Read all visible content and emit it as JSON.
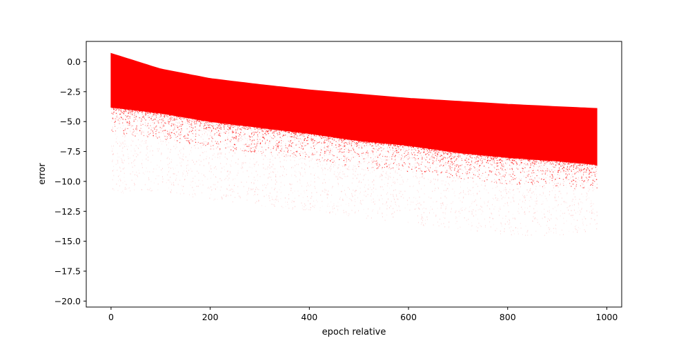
{
  "chart_data": {
    "type": "scatter",
    "title": "",
    "xlabel": "epoch relative",
    "ylabel": "error",
    "xlim": [
      -50,
      1030
    ],
    "ylim": [
      -20.5,
      1.7
    ],
    "xticks": [
      0,
      200,
      400,
      600,
      800,
      1000
    ],
    "yticks": [
      0.0,
      -2.5,
      -5.0,
      -7.5,
      -10.0,
      -12.5,
      -15.0,
      -17.5,
      -20.0
    ],
    "xtick_labels": [
      "0",
      "200",
      "400",
      "600",
      "800",
      "1000"
    ],
    "ytick_labels": [
      "0.0",
      "−2.5",
      "−5.0",
      "−7.5",
      "−10.0",
      "−12.5",
      "−15.0",
      "−17.5",
      "−20.0"
    ],
    "grid": false,
    "legend": "none",
    "color": "#ff0000",
    "point_cloud": {
      "x_range": [
        0,
        980
      ],
      "upper_envelope": {
        "x": [
          0,
          100,
          200,
          300,
          400,
          500,
          600,
          700,
          800,
          900,
          980
        ],
        "y": [
          0.7,
          -0.6,
          -1.4,
          -1.9,
          -2.35,
          -2.7,
          -3.05,
          -3.3,
          -3.55,
          -3.75,
          -3.9
        ]
      },
      "dense_lower_envelope": {
        "x": [
          0,
          100,
          200,
          300,
          400,
          500,
          600,
          700,
          800,
          900,
          980
        ],
        "y": [
          -3.8,
          -4.3,
          -5.0,
          -5.5,
          -6.0,
          -6.6,
          -7.0,
          -7.6,
          -8.0,
          -8.3,
          -8.6
        ]
      },
      "sparse_lower_envelope": {
        "x": [
          0,
          100,
          200,
          300,
          400,
          500,
          600,
          700,
          800,
          900,
          980
        ],
        "y": [
          -11.0,
          -10.8,
          -11.5,
          -12.0,
          -12.5,
          -13.0,
          -13.5,
          -14.0,
          -14.5,
          -14.5,
          -14.0
        ]
      }
    }
  }
}
